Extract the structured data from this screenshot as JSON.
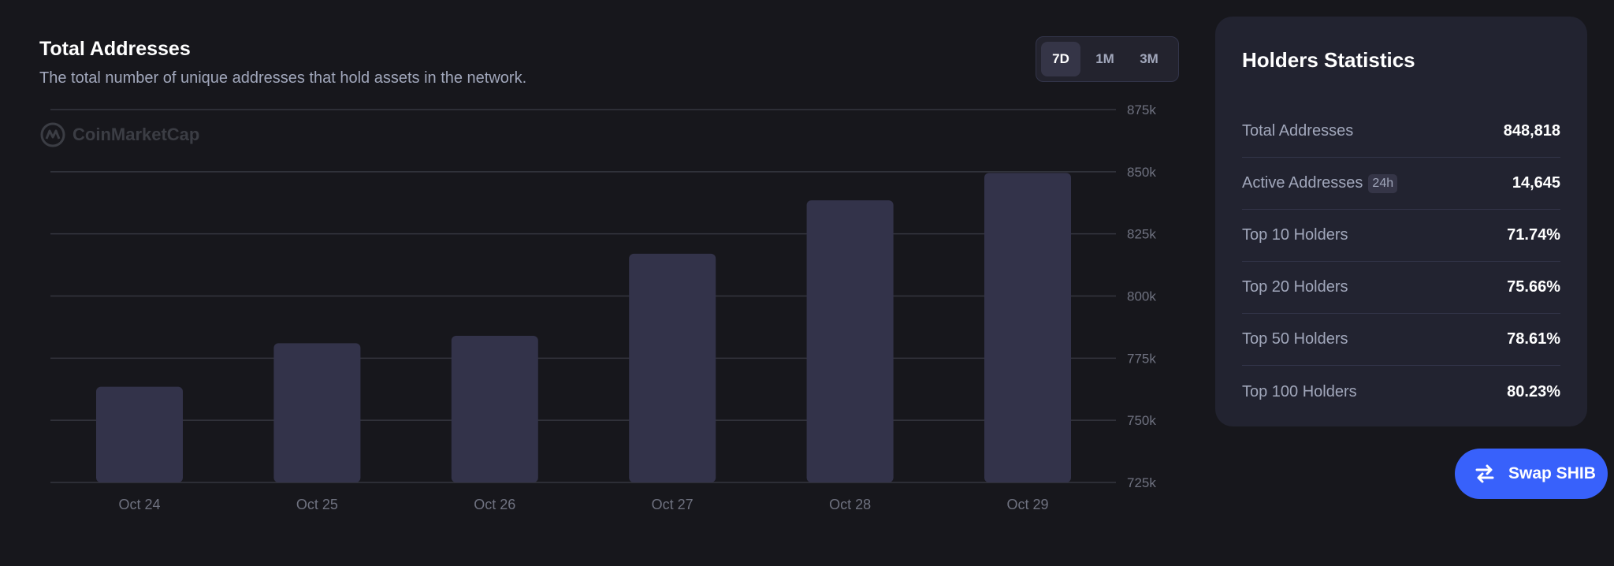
{
  "chart_section": {
    "title": "Total Addresses",
    "subtitle": "The total number of unique addresses that hold assets in the network.",
    "watermark": "CoinMarketCap",
    "range_tabs": [
      {
        "label": "7D",
        "active": true
      },
      {
        "label": "1M",
        "active": false
      },
      {
        "label": "3M",
        "active": false
      }
    ]
  },
  "chart_data": {
    "type": "bar",
    "categories": [
      "Oct 24",
      "Oct 25",
      "Oct 26",
      "Oct 27",
      "Oct 28",
      "Oct 29"
    ],
    "values": [
      763500,
      781000,
      784000,
      817000,
      838500,
      849500
    ],
    "ylim": [
      725000,
      875000
    ],
    "yticks": [
      875000,
      850000,
      825000,
      800000,
      775000,
      750000,
      725000
    ],
    "ytick_labels": [
      "875k",
      "850k",
      "825k",
      "800k",
      "775k",
      "750k",
      "725k"
    ],
    "grid": true,
    "bar_color": "#33334a",
    "grid_color": "#35363f"
  },
  "holders_statistics": {
    "title": "Holders Statistics",
    "rows": [
      {
        "label": "Total Addresses",
        "value": "848,818"
      },
      {
        "label": "Active Addresses",
        "badge": "24h",
        "value": "14,645"
      },
      {
        "label": "Top 10 Holders",
        "value": "71.74%"
      },
      {
        "label": "Top 20 Holders",
        "value": "75.66%"
      },
      {
        "label": "Top 50 Holders",
        "value": "78.61%"
      },
      {
        "label": "Top 100 Holders",
        "value": "80.23%"
      }
    ]
  },
  "swap_button": {
    "label": "Swap SHIB",
    "icon": "swap-arrows-icon",
    "color": "#3861fb"
  }
}
